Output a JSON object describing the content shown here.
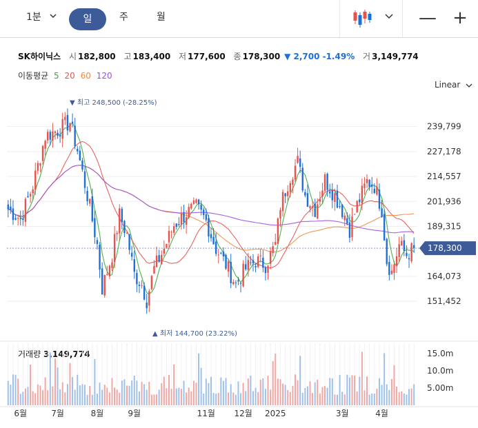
{
  "toolbar": {
    "interval_label": "1분",
    "timeframes": [
      "일",
      "주",
      "월"
    ],
    "selected_timeframe": "일",
    "zoom_out": "—",
    "zoom_in": "+"
  },
  "stock": {
    "name": "SK하이닉스",
    "open_label": "시",
    "open": "182,800",
    "high_label": "고",
    "high": "183,400",
    "low_label": "저",
    "low": "177,600",
    "close_label": "종",
    "close": "178,300",
    "change": "▼ 2,700 -1.49%",
    "volume_label": "거",
    "volume": "3,149,774"
  },
  "moving_average": {
    "label": "이동평균",
    "periods": [
      {
        "period": "5",
        "color": "#3aa83a"
      },
      {
        "period": "20",
        "color": "#e8524c"
      },
      {
        "period": "60",
        "color": "#f08a3c"
      },
      {
        "period": "120",
        "color": "#9b4fe0"
      }
    ]
  },
  "scale_label": "Linear",
  "colors": {
    "up": "#e8524c",
    "down": "#1e6fd9",
    "accent": "#3d5a99",
    "volume": "#a9c1e6"
  },
  "chart_data": {
    "type": "candlestick",
    "y_ticks": [
      "239,799",
      "227,178",
      "214,557",
      "201,936",
      "189,315",
      "164,073",
      "151,452"
    ],
    "ylim": [
      140000,
      255000
    ],
    "current_price": "178,300",
    "high_annotation": "▼ 최고 248,500 (-28.25%)",
    "low_annotation": "▲ 최저 144,700 (23.22%)",
    "x_labels": [
      "6월",
      "7월",
      "8월",
      "9월",
      "11월",
      "12월",
      "2025",
      "3월",
      "4월"
    ],
    "x_label_index": [
      5,
      20,
      36,
      51,
      80,
      95,
      108,
      135,
      151
    ],
    "n_candles": 165,
    "price_anchors": [
      [
        0,
        198000
      ],
      [
        5,
        193000
      ],
      [
        10,
        210000
      ],
      [
        15,
        235000
      ],
      [
        20,
        238000
      ],
      [
        25,
        242000
      ],
      [
        28,
        228000
      ],
      [
        32,
        205000
      ],
      [
        36,
        180000
      ],
      [
        38,
        158000
      ],
      [
        42,
        175000
      ],
      [
        45,
        195000
      ],
      [
        48,
        185000
      ],
      [
        51,
        165000
      ],
      [
        54,
        160000
      ],
      [
        56,
        152000
      ],
      [
        59,
        168000
      ],
      [
        63,
        178000
      ],
      [
        67,
        190000
      ],
      [
        72,
        196000
      ],
      [
        76,
        199000
      ],
      [
        80,
        192000
      ],
      [
        84,
        178000
      ],
      [
        88,
        170000
      ],
      [
        92,
        160000
      ],
      [
        96,
        168000
      ],
      [
        100,
        172000
      ],
      [
        104,
        170000
      ],
      [
        108,
        180000
      ],
      [
        110,
        200000
      ],
      [
        114,
        215000
      ],
      [
        117,
        222000
      ],
      [
        120,
        205000
      ],
      [
        124,
        198000
      ],
      [
        128,
        213000
      ],
      [
        132,
        205000
      ],
      [
        136,
        195000
      ],
      [
        138,
        188000
      ],
      [
        141,
        200000
      ],
      [
        145,
        212000
      ],
      [
        148,
        210000
      ],
      [
        151,
        198000
      ],
      [
        153,
        172000
      ],
      [
        155,
        166000
      ],
      [
        158,
        180000
      ],
      [
        161,
        175000
      ],
      [
        164,
        178300
      ]
    ],
    "volume": {
      "ticks": [
        "15.0m",
        "10.0m",
        "5.00m"
      ],
      "ymax": 18000000,
      "last": "3,149,774"
    }
  },
  "volume_panel": {
    "title": "거래량",
    "value": "3,149,774"
  }
}
